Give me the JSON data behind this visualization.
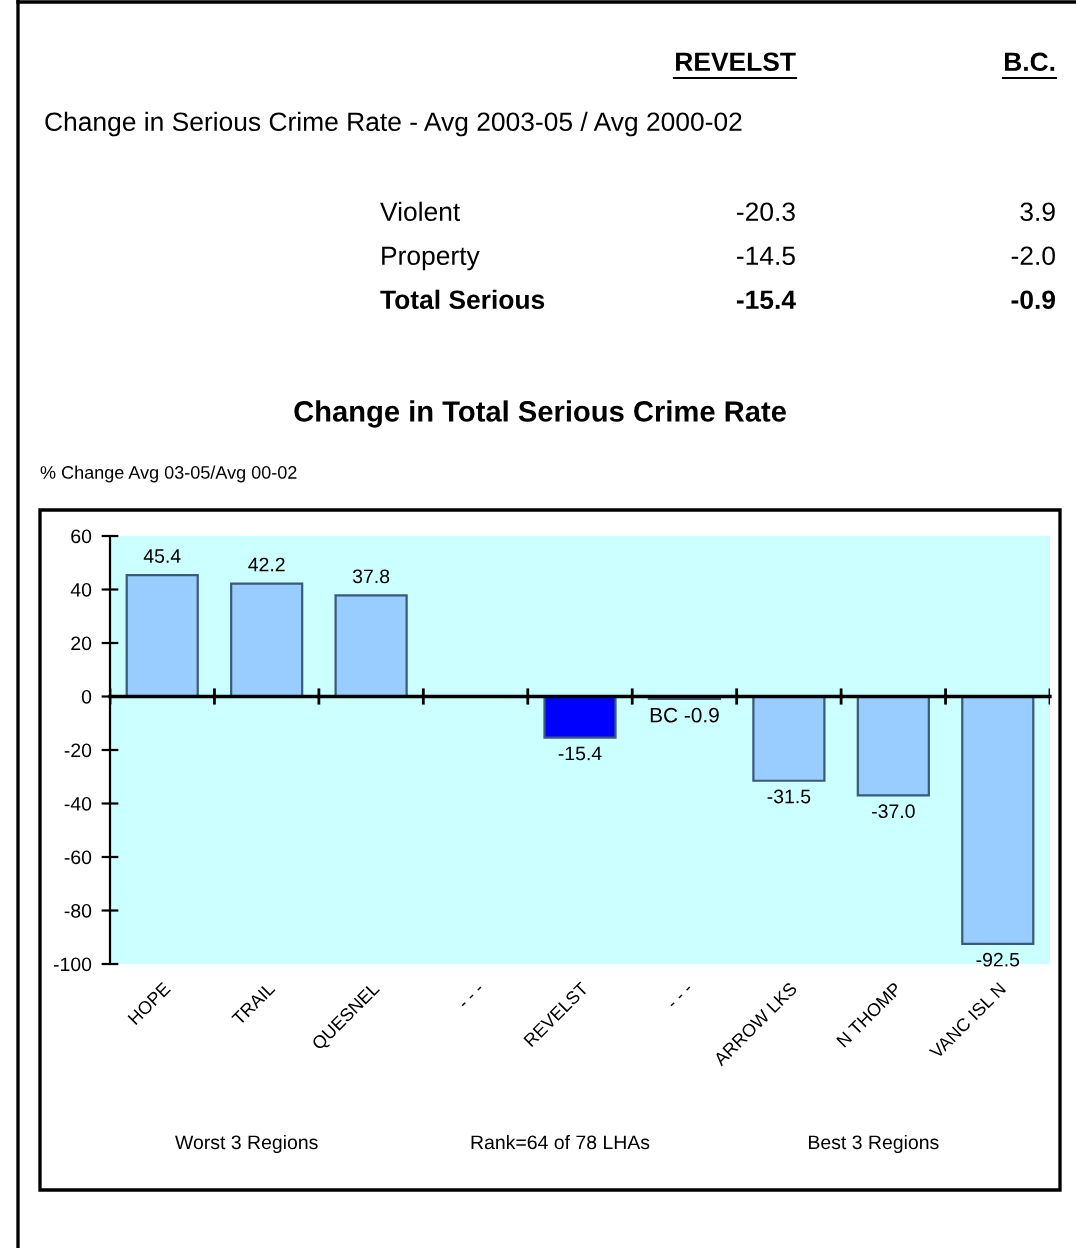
{
  "chart_data": [
    {
      "type": "other",
      "title": "Change in Serious Crime Rate - Avg 2003-05 / Avg 2000-02",
      "annotations": [
        "REVELST",
        "B.C.",
        "Violent",
        "-20.3",
        "3.9",
        "Property",
        "-14.5",
        "-2.0",
        "Total Serious",
        "-15.4",
        "-0.9"
      ]
    },
    {
      "type": "bar",
      "title": "Change in Total Serious Crime Rate",
      "ylabel": "% Change Avg 03-05/Avg 00-02",
      "categories": [
        "HOPE",
        "TRAIL",
        "QUESNEL",
        "- - -",
        "REVELST",
        "- - -",
        "ARROW LKS",
        "N THOMP",
        "VANC ISL N"
      ],
      "values": [
        45.4,
        42.2,
        37.8,
        null,
        -15.4,
        -0.9,
        -31.5,
        -37.0,
        -92.5
      ],
      "value_labels": [
        "45.4",
        "42.2",
        "37.8",
        null,
        "-15.4",
        "BC -0.9",
        "-31.5",
        "-37.0",
        "-92.5"
      ],
      "colors": [
        "#99ccff",
        "#99ccff",
        "#99ccff",
        "#99ccff",
        "#0000ff",
        "#99ccff",
        "#99ccff",
        "#99ccff",
        "#99ccff"
      ],
      "ylim": [
        -100,
        60
      ],
      "yticks": [
        -100,
        -80,
        -60,
        -40,
        -20,
        0,
        20,
        40,
        60
      ],
      "annotations": [
        "Worst 3 Regions",
        "Rank=64 of 78 LHAs",
        "Best 3 Regions"
      ]
    }
  ]
}
